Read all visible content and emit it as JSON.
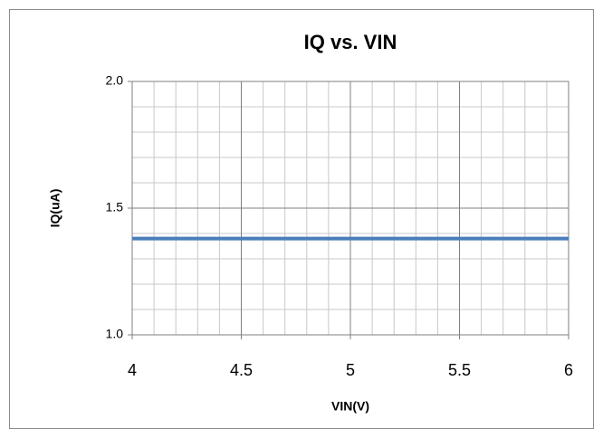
{
  "chart_data": {
    "type": "line",
    "title": "IQ vs. VIN",
    "xlabel": "VIN(V)",
    "ylabel": "IQ(uA)",
    "x": [
      4,
      4.5,
      5,
      5.5,
      6
    ],
    "series": [
      {
        "name": "IQ",
        "color": "#4a7ebb",
        "values": [
          1.38,
          1.38,
          1.38,
          1.38,
          1.38
        ]
      }
    ],
    "xlim": [
      4,
      6
    ],
    "xticks": [
      4,
      4.5,
      5,
      5.5,
      6
    ],
    "ylim": [
      1,
      2
    ],
    "yticks": [
      {
        "value": 1,
        "label": "1.0"
      },
      1.5,
      {
        "value": 2,
        "label": "2.0"
      }
    ],
    "xminorticks": [
      4.1,
      4.2,
      4.3,
      4.4,
      4.6,
      4.7,
      4.8,
      4.9,
      5.1,
      5.2,
      5.3,
      5.4,
      5.6,
      5.7,
      5.8,
      5.9
    ],
    "yminorticks": [
      1.1,
      1.2,
      1.3,
      1.4,
      1.6,
      1.7,
      1.8,
      1.9
    ],
    "grid": true
  }
}
